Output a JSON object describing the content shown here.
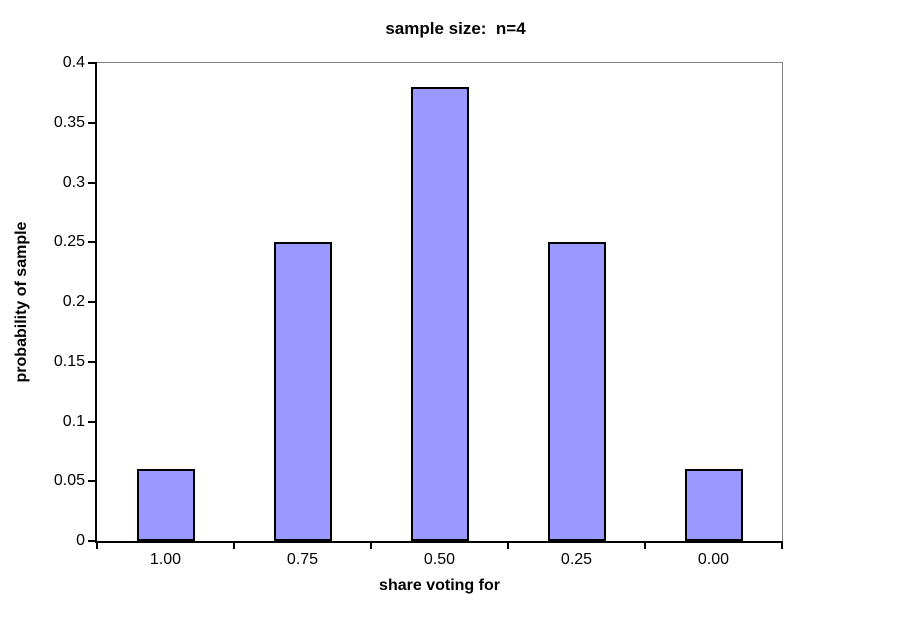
{
  "chart_data": {
    "type": "bar",
    "title": "sample size:  n=4",
    "xlabel": "share voting for",
    "ylabel": "probability of sample",
    "categories": [
      "1.00",
      "0.75",
      "0.50",
      "0.25",
      "0.00"
    ],
    "values": [
      0.06,
      0.25,
      0.38,
      0.25,
      0.06
    ],
    "ylim": [
      0,
      0.4
    ],
    "ytick_step": 0.05,
    "ytick_labels": [
      "0",
      "0.05",
      "0.1",
      "0.15",
      "0.2",
      "0.25",
      "0.3",
      "0.35",
      "0.4"
    ],
    "grid": "off",
    "legend": "none",
    "bar_fill_color": "#9999FF",
    "bar_border_color": "#000000",
    "axis_color": "#000000",
    "plot_border_color": "#848484",
    "background_color": "#FFFFFF"
  }
}
